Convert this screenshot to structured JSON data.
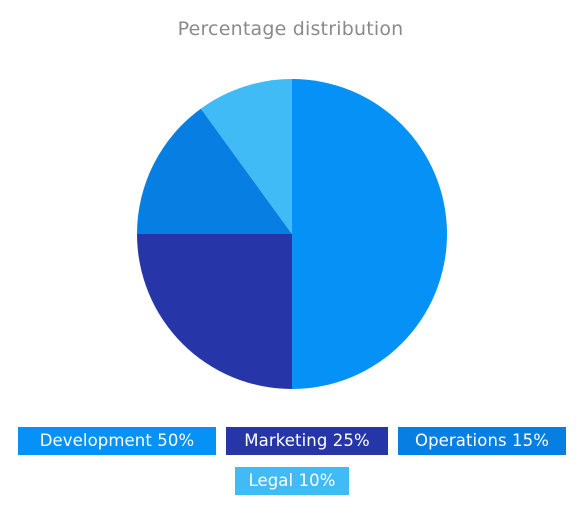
{
  "chart_data": {
    "type": "pie",
    "title": "Percentage distribution",
    "slices": [
      {
        "label": "Development",
        "value": 50,
        "color": "#0591f6",
        "legend": "Development 50%"
      },
      {
        "label": "Marketing",
        "value": 25,
        "color": "#2636a8",
        "legend": "Marketing 25%"
      },
      {
        "label": "Operations",
        "value": 15,
        "color": "#077fe2",
        "legend": "Operations 15%"
      },
      {
        "label": "Legal",
        "value": 10,
        "color": "#41bbf6",
        "legend": "Legal 10%"
      }
    ],
    "start_angle_deg": 0,
    "direction": "clockwise",
    "legend_position": "bottom",
    "data_labels": false
  }
}
